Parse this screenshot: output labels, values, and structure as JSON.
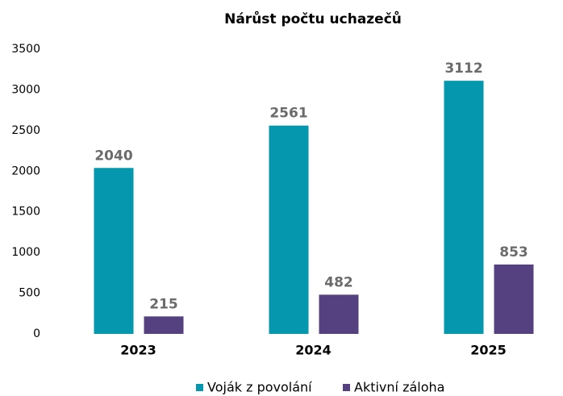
{
  "chart_data": {
    "type": "bar",
    "title": "Nárůst počtu uchazečů",
    "categories": [
      "2023",
      "2024",
      "2025"
    ],
    "series": [
      {
        "name": "Voják z povolání",
        "color": "#0597ad",
        "values": [
          2040,
          2561,
          3112
        ]
      },
      {
        "name": "Aktivní záloha",
        "color": "#554080",
        "values": [
          215,
          482,
          853
        ]
      }
    ],
    "ylim": [
      0,
      3500
    ],
    "yticks": [
      0,
      500,
      1000,
      1500,
      2000,
      2500,
      3000,
      3500
    ],
    "grid": false,
    "legend": "bottom"
  }
}
